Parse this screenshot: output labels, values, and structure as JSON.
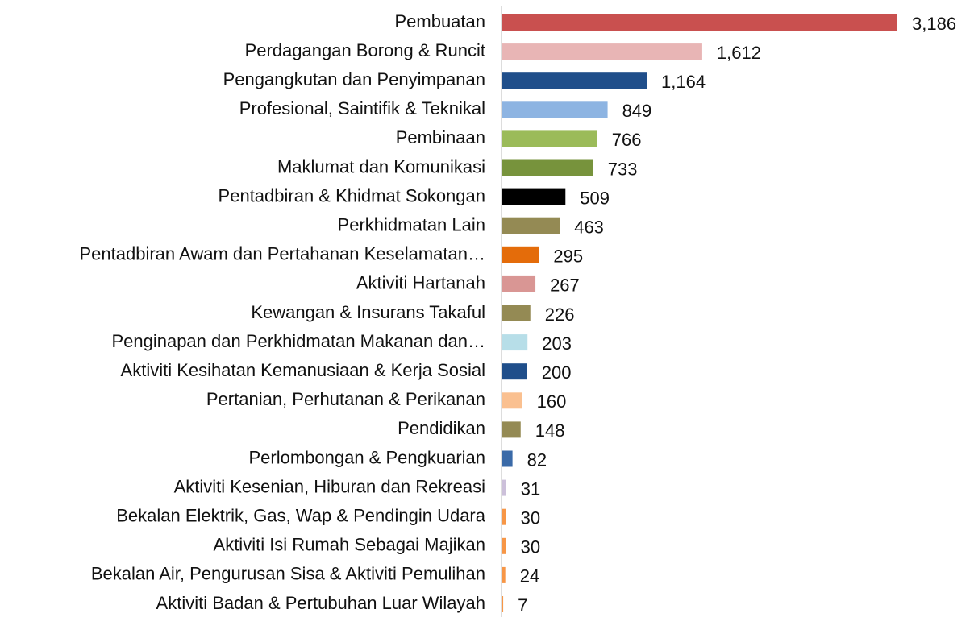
{
  "chart_data": {
    "type": "barh",
    "categories": [
      "Pembuatan",
      "Perdagangan Borong & Runcit",
      "Pengangkutan dan Penyimpanan",
      "Profesional, Saintifik & Teknikal",
      "Pembinaan",
      "Maklumat dan Komunikasi",
      "Pentadbiran & Khidmat Sokongan",
      "Perkhidmatan Lain",
      "Pentadbiran Awam dan Pertahanan Keselamatan…",
      "Aktiviti Hartanah",
      "Kewangan & Insurans Takaful",
      "Penginapan dan Perkhidmatan Makanan dan…",
      "Aktiviti Kesihatan Kemanusiaan & Kerja Sosial",
      "Pertanian, Perhutanan & Perikanan",
      "Pendidikan",
      "Perlombongan & Pengkuarian",
      "Aktiviti Kesenian, Hiburan dan Rekreasi",
      "Bekalan Elektrik, Gas, Wap & Pendingin Udara",
      "Aktiviti Isi Rumah Sebagai Majikan",
      "Bekalan Air, Pengurusan Sisa & Aktiviti Pemulihan",
      "Aktiviti Badan & Pertubuhan Luar Wilayah"
    ],
    "values": [
      3186,
      1612,
      1164,
      849,
      766,
      733,
      509,
      463,
      295,
      267,
      226,
      203,
      200,
      160,
      148,
      82,
      31,
      30,
      30,
      24,
      7
    ],
    "value_labels": [
      "3,186",
      "1,612",
      "1,164",
      "849",
      "766",
      "733",
      "509",
      "463",
      "295",
      "267",
      "226",
      "203",
      "200",
      "160",
      "148",
      "82",
      "31",
      "30",
      "30",
      "24",
      "7"
    ],
    "colors": [
      "#c9504f",
      "#e8b5b5",
      "#1f4e8a",
      "#8db4e2",
      "#9bbb59",
      "#77933c",
      "#000000",
      "#948a54",
      "#e46c0a",
      "#d99694",
      "#948a54",
      "#b7dee8",
      "#1f4e8a",
      "#fac090",
      "#948a54",
      "#3a6aa8",
      "#ccc0da",
      "#f79646",
      "#f79646",
      "#f79646",
      "#f79646"
    ]
  }
}
